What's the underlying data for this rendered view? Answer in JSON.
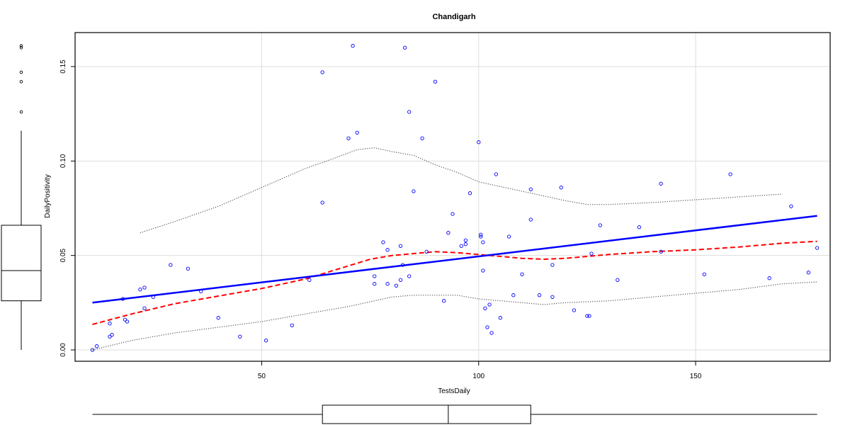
{
  "chart_data": {
    "type": "scatter",
    "title": "Chandigarh",
    "xlabel": "TestsDaily",
    "ylabel": "DailyPositivity",
    "xlim": [
      7,
      181
    ],
    "ylim": [
      -0.006,
      0.168
    ],
    "x_ticks": [
      50,
      100,
      150
    ],
    "y_ticks": [
      0.0,
      0.05,
      0.1,
      0.15
    ],
    "x_tick_labels": [
      "50",
      "100",
      "150"
    ],
    "y_tick_labels": [
      "0.00",
      "0.05",
      "0.10",
      "0.15"
    ],
    "grid": true,
    "colors": {
      "points": "#0000ff",
      "regression": "#0000ff",
      "smooth": "#ff0000",
      "band": "#555555",
      "grid": "#dddddd"
    },
    "points": [
      [
        11,
        0.0
      ],
      [
        12,
        0.002
      ],
      [
        15,
        0.007
      ],
      [
        15.5,
        0.008
      ],
      [
        15,
        0.014
      ],
      [
        18,
        0.027
      ],
      [
        18.5,
        0.016
      ],
      [
        19,
        0.015
      ],
      [
        22,
        0.032
      ],
      [
        23,
        0.022
      ],
      [
        23,
        0.033
      ],
      [
        25,
        0.028
      ],
      [
        29,
        0.045
      ],
      [
        33,
        0.043
      ],
      [
        36,
        0.031
      ],
      [
        40,
        0.017
      ],
      [
        45,
        0.007
      ],
      [
        51,
        0.005
      ],
      [
        57,
        0.013
      ],
      [
        61,
        0.037
      ],
      [
        64,
        0.147
      ],
      [
        64,
        0.078
      ],
      [
        70,
        0.112
      ],
      [
        71,
        0.161
      ],
      [
        72,
        0.115
      ],
      [
        76,
        0.039
      ],
      [
        76,
        0.035
      ],
      [
        78,
        0.057
      ],
      [
        79,
        0.035
      ],
      [
        79,
        0.053
      ],
      [
        81,
        0.034
      ],
      [
        82,
        0.055
      ],
      [
        82,
        0.037
      ],
      [
        82.5,
        0.045
      ],
      [
        83,
        0.16
      ],
      [
        84,
        0.126
      ],
      [
        84,
        0.039
      ],
      [
        85,
        0.084
      ],
      [
        87,
        0.112
      ],
      [
        88,
        0.052
      ],
      [
        90,
        0.142
      ],
      [
        92,
        0.026
      ],
      [
        93,
        0.062
      ],
      [
        94,
        0.072
      ],
      [
        96,
        0.055
      ],
      [
        97,
        0.058
      ],
      [
        97,
        0.056
      ],
      [
        98,
        0.083
      ],
      [
        100,
        0.11
      ],
      [
        100.5,
        0.061
      ],
      [
        100.5,
        0.06
      ],
      [
        101,
        0.057
      ],
      [
        101,
        0.042
      ],
      [
        101.5,
        0.022
      ],
      [
        102,
        0.012
      ],
      [
        102.5,
        0.024
      ],
      [
        103,
        0.009
      ],
      [
        104,
        0.093
      ],
      [
        105,
        0.017
      ],
      [
        107,
        0.06
      ],
      [
        108,
        0.029
      ],
      [
        110,
        0.04
      ],
      [
        112,
        0.085
      ],
      [
        112,
        0.069
      ],
      [
        114,
        0.029
      ],
      [
        117,
        0.028
      ],
      [
        117,
        0.045
      ],
      [
        119,
        0.086
      ],
      [
        122,
        0.021
      ],
      [
        125,
        0.018
      ],
      [
        125.5,
        0.018
      ],
      [
        126,
        0.051
      ],
      [
        128,
        0.066
      ],
      [
        132,
        0.037
      ],
      [
        137,
        0.065
      ],
      [
        142,
        0.088
      ],
      [
        142,
        0.052
      ],
      [
        152,
        0.04
      ],
      [
        158,
        0.093
      ],
      [
        167,
        0.038
      ],
      [
        172,
        0.076
      ],
      [
        176,
        0.041
      ],
      [
        178,
        0.054
      ]
    ],
    "regression_line": {
      "x": [
        11,
        178
      ],
      "y": [
        0.025,
        0.071
      ]
    },
    "smooth_line": {
      "x": [
        11,
        20,
        30,
        40,
        50,
        60,
        65,
        70,
        75,
        80,
        85,
        90,
        95,
        100,
        105,
        110,
        115,
        120,
        125,
        130,
        140,
        150,
        160,
        170,
        178
      ],
      "y": [
        0.0135,
        0.019,
        0.0245,
        0.0285,
        0.0325,
        0.0375,
        0.041,
        0.0445,
        0.048,
        0.05,
        0.051,
        0.052,
        0.0515,
        0.0505,
        0.0495,
        0.0485,
        0.048,
        0.0485,
        0.0495,
        0.0505,
        0.052,
        0.053,
        0.0545,
        0.0565,
        0.0575
      ]
    },
    "upper_band": {
      "x": [
        22,
        30,
        40,
        50,
        60,
        65,
        72,
        76,
        80,
        85,
        90,
        95,
        100,
        110,
        120,
        125,
        130,
        140,
        150,
        160,
        170
      ],
      "y": [
        0.062,
        0.068,
        0.076,
        0.086,
        0.096,
        0.1,
        0.106,
        0.107,
        0.105,
        0.103,
        0.098,
        0.094,
        0.089,
        0.084,
        0.079,
        0.077,
        0.077,
        0.078,
        0.0795,
        0.081,
        0.0825
      ]
    },
    "lower_band": {
      "x": [
        11,
        20,
        30,
        40,
        50,
        60,
        70,
        80,
        85,
        90,
        95,
        100,
        110,
        115,
        120,
        130,
        140,
        150,
        160,
        170,
        178
      ],
      "y": [
        0.0,
        0.005,
        0.009,
        0.012,
        0.015,
        0.019,
        0.023,
        0.028,
        0.029,
        0.029,
        0.029,
        0.027,
        0.025,
        0.024,
        0.025,
        0.026,
        0.028,
        0.03,
        0.032,
        0.035,
        0.036
      ]
    },
    "y_boxplot": {
      "whisker_low": 0.0,
      "q1": 0.026,
      "median": 0.042,
      "q3": 0.066,
      "whisker_high": 0.116,
      "outliers": [
        0.126,
        0.142,
        0.147,
        0.16,
        0.161
      ]
    },
    "x_boxplot": {
      "whisker_low": 11,
      "q1": 64,
      "median": 93,
      "q3": 112,
      "whisker_high": 178
    }
  }
}
